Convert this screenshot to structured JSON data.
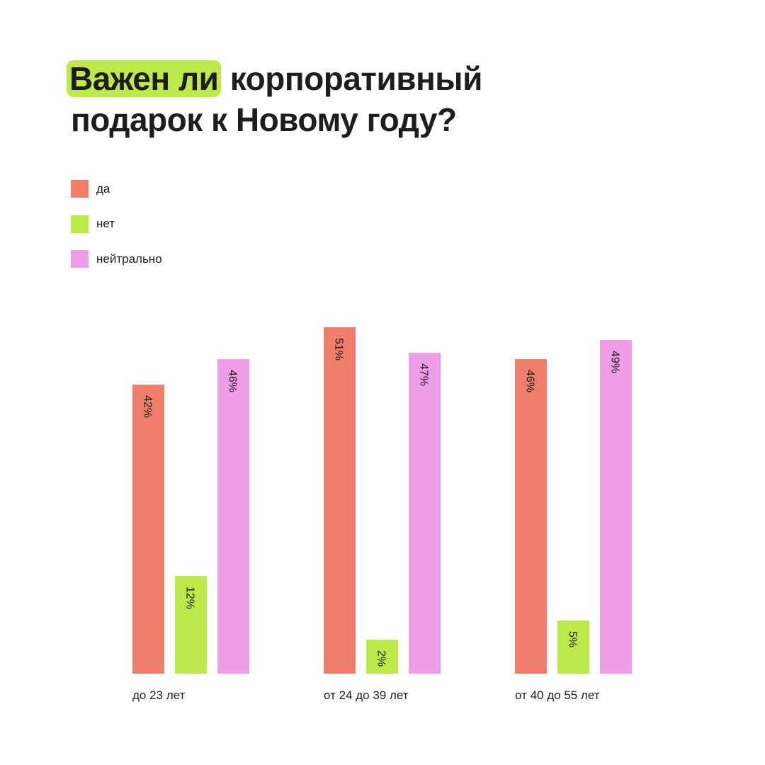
{
  "chart_data": {
    "type": "bar",
    "title_highlight": "Важен ли",
    "title_rest_line1": "корпоративный",
    "title_line2": "подарок к Новому году?",
    "categories": [
      "до 23 лет",
      "от 24 до 39 лет",
      "от 40 до 55 лет"
    ],
    "series": [
      {
        "name": "да",
        "color": "#f07e6b",
        "values": [
          42,
          51,
          46
        ]
      },
      {
        "name": "нет",
        "color": "#bde94a",
        "values": [
          12,
          2,
          5
        ]
      },
      {
        "name": "нейтрально",
        "color": "#f09de8",
        "values": [
          46,
          47,
          49
        ]
      }
    ],
    "value_suffix": "%",
    "highlight_color": "#bde94a",
    "legend_position": "top-left",
    "grid": false,
    "xlabel": "",
    "ylabel": ""
  }
}
